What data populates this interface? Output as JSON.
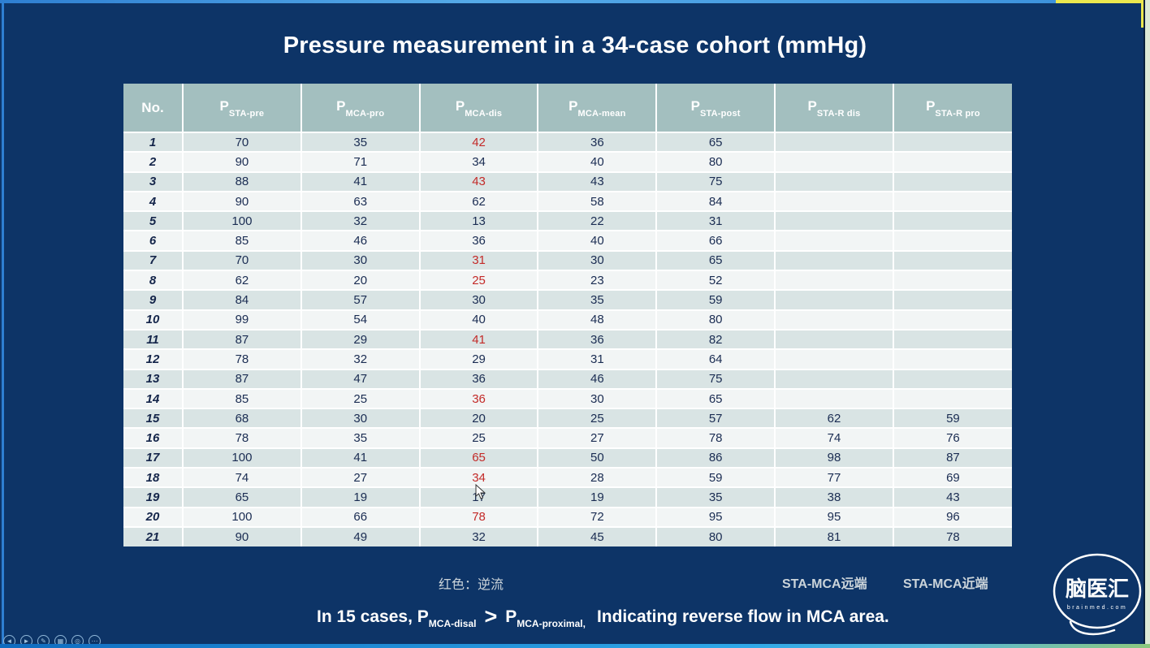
{
  "title": "Pressure measurement in a 34-case cohort (mmHg)",
  "colors": {
    "background": "#0d3467",
    "table_header": "#a3bfbf",
    "row_odd": "#d9e4e4",
    "row_even": "#f2f5f5",
    "body_text": "#1a2c52",
    "red_value": "#c32a28",
    "frame_blue": "#2e7fd2",
    "frame_yellow": "#ece84e",
    "frame_mint": "#dcead6"
  },
  "table": {
    "headers": [
      {
        "label": "No.",
        "sub": ""
      },
      {
        "label": "P",
        "sub": "STA-pre"
      },
      {
        "label": "P",
        "sub": "MCA-pro"
      },
      {
        "label": "P",
        "sub": "MCA-dis"
      },
      {
        "label": "P",
        "sub": "MCA-mean"
      },
      {
        "label": "P",
        "sub": "STA-post"
      },
      {
        "label": "P",
        "sub": "STA-R dis"
      },
      {
        "label": "P",
        "sub": "STA-R pro"
      }
    ],
    "rows": [
      {
        "no": "1",
        "cells": [
          "70",
          "35",
          "42",
          "36",
          "65",
          "",
          ""
        ]
      },
      {
        "no": "2",
        "cells": [
          "90",
          "71",
          "34",
          "40",
          "80",
          "",
          ""
        ]
      },
      {
        "no": "3",
        "cells": [
          "88",
          "41",
          "43",
          "43",
          "75",
          "",
          ""
        ]
      },
      {
        "no": "4",
        "cells": [
          "90",
          "63",
          "62",
          "58",
          "84",
          "",
          ""
        ]
      },
      {
        "no": "5",
        "cells": [
          "100",
          "32",
          "13",
          "22",
          "31",
          "",
          ""
        ]
      },
      {
        "no": "6",
        "cells": [
          "85",
          "46",
          "36",
          "40",
          "66",
          "",
          ""
        ]
      },
      {
        "no": "7",
        "cells": [
          "70",
          "30",
          "31",
          "30",
          "65",
          "",
          ""
        ]
      },
      {
        "no": "8",
        "cells": [
          "62",
          "20",
          "25",
          "23",
          "52",
          "",
          ""
        ]
      },
      {
        "no": "9",
        "cells": [
          "84",
          "57",
          "30",
          "35",
          "59",
          "",
          ""
        ]
      },
      {
        "no": "10",
        "cells": [
          "99",
          "54",
          "40",
          "48",
          "80",
          "",
          ""
        ]
      },
      {
        "no": "11",
        "cells": [
          "87",
          "29",
          "41",
          "36",
          "82",
          "",
          ""
        ]
      },
      {
        "no": "12",
        "cells": [
          "78",
          "32",
          "29",
          "31",
          "64",
          "",
          ""
        ]
      },
      {
        "no": "13",
        "cells": [
          "87",
          "47",
          "36",
          "46",
          "75",
          "",
          ""
        ]
      },
      {
        "no": "14",
        "cells": [
          "85",
          "25",
          "36",
          "30",
          "65",
          "",
          ""
        ]
      },
      {
        "no": "15",
        "cells": [
          "68",
          "30",
          "20",
          "25",
          "57",
          "62",
          "59"
        ]
      },
      {
        "no": "16",
        "cells": [
          "78",
          "35",
          "25",
          "27",
          "78",
          "74",
          "76"
        ]
      },
      {
        "no": "17",
        "cells": [
          "100",
          "41",
          "65",
          "50",
          "86",
          "98",
          "87"
        ]
      },
      {
        "no": "18",
        "cells": [
          "74",
          "27",
          "34",
          "28",
          "59",
          "77",
          "69"
        ]
      },
      {
        "no": "19",
        "cells": [
          "65",
          "19",
          "17",
          "19",
          "35",
          "38",
          "43"
        ]
      },
      {
        "no": "20",
        "cells": [
          "100",
          "66",
          "78",
          "72",
          "95",
          "95",
          "96"
        ]
      },
      {
        "no": "21",
        "cells": [
          "90",
          "49",
          "32",
          "45",
          "80",
          "81",
          "78"
        ]
      }
    ],
    "red_cells": [
      [
        0,
        2
      ],
      [
        2,
        2
      ],
      [
        6,
        2
      ],
      [
        7,
        2
      ],
      [
        10,
        2
      ],
      [
        13,
        2
      ],
      [
        16,
        2
      ],
      [
        17,
        2
      ],
      [
        19,
        2
      ]
    ]
  },
  "annotations": {
    "legend_red": "红色：逆流",
    "sta_mca_distal": "STA-MCA远端",
    "sta_mca_proximal": "STA-MCA近端"
  },
  "conclusion": {
    "prefix": "In 15 cases, ",
    "p1": "P",
    "p1_sub": "MCA-disal",
    "gt": ">",
    "p2": "P",
    "p2_sub": "MCA-proximal,",
    "suffix": "Indicating reverse flow in MCA area."
  },
  "logo": {
    "text": "脑医汇",
    "subtext": "brainmed.com"
  },
  "toolbar": {
    "icons": [
      {
        "name": "back-icon",
        "glyph": "◄"
      },
      {
        "name": "forward-icon",
        "glyph": "►"
      },
      {
        "name": "pen-icon",
        "glyph": "✎"
      },
      {
        "name": "slides-icon",
        "glyph": "▦"
      },
      {
        "name": "zoom-icon",
        "glyph": "◎"
      },
      {
        "name": "more-icon",
        "glyph": "⋯"
      }
    ]
  }
}
